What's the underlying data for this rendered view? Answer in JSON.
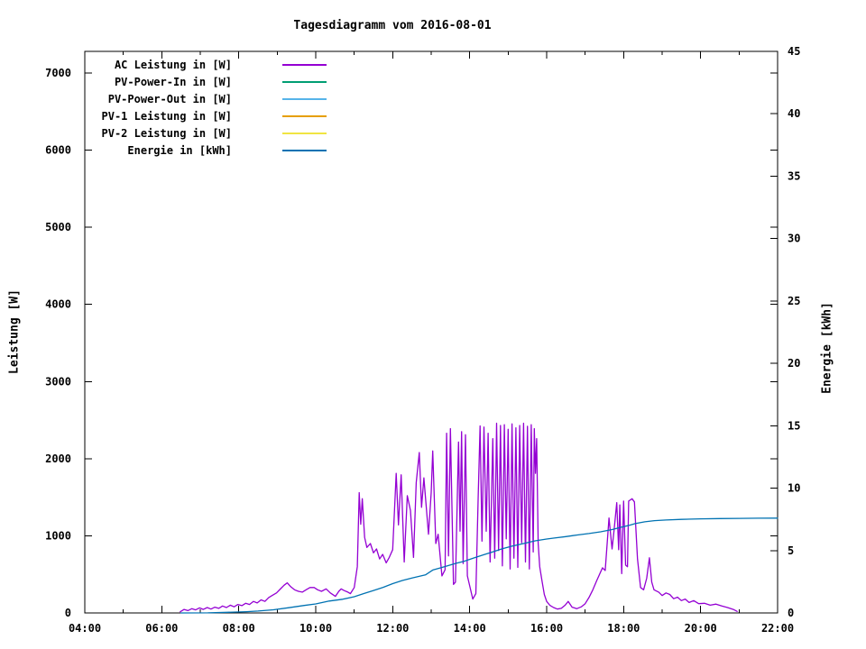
{
  "title": "Tagesdiagramm vom 2016-08-01",
  "axes": {
    "x": {
      "major_ticks": [
        {
          "h": 4,
          "label": "04:00"
        },
        {
          "h": 6,
          "label": "06:00"
        },
        {
          "h": 8,
          "label": "08:00"
        },
        {
          "h": 10,
          "label": "10:00"
        },
        {
          "h": 12,
          "label": "12:00"
        },
        {
          "h": 14,
          "label": "14:00"
        },
        {
          "h": 16,
          "label": "16:00"
        },
        {
          "h": 18,
          "label": "18:00"
        },
        {
          "h": 20,
          "label": "20:00"
        },
        {
          "h": 22,
          "label": "22:00"
        }
      ],
      "minor_hours": [
        5,
        7,
        9,
        11,
        13,
        15,
        17,
        19,
        21
      ]
    },
    "y_left": {
      "label": "Leistung [W]",
      "ticks": [
        0,
        1000,
        2000,
        3000,
        4000,
        5000,
        6000,
        7000
      ]
    },
    "y_right": {
      "label": "Energie [kWh]",
      "ticks": [
        0,
        5,
        10,
        15,
        20,
        25,
        30,
        35,
        40,
        45
      ]
    }
  },
  "chart_data": {
    "type": "line",
    "title": "Tagesdiagramm vom 2016-08-01",
    "x_unit": "hour-of-day",
    "x_range": [
      4,
      22
    ],
    "y_left_label": "Leistung [W]",
    "y_left_range": [
      0,
      7280
    ],
    "y_left_tick_max": 7000,
    "y_right_label": "Energie [kWh]",
    "y_right_range": [
      0,
      45
    ],
    "grid": false,
    "legend_position": "top-left-inside",
    "series": [
      {
        "name": "AC Leistung in [W]",
        "color": "#9400d3",
        "axis": "left",
        "points": [
          [
            6.48,
            15
          ],
          [
            6.58,
            45
          ],
          [
            6.68,
            30
          ],
          [
            6.78,
            55
          ],
          [
            6.88,
            40
          ],
          [
            6.98,
            65
          ],
          [
            7.08,
            45
          ],
          [
            7.18,
            70
          ],
          [
            7.28,
            50
          ],
          [
            7.38,
            75
          ],
          [
            7.48,
            60
          ],
          [
            7.58,
            90
          ],
          [
            7.68,
            70
          ],
          [
            7.78,
            100
          ],
          [
            7.88,
            80
          ],
          [
            7.98,
            110
          ],
          [
            8.08,
            95
          ],
          [
            8.18,
            125
          ],
          [
            8.28,
            110
          ],
          [
            8.38,
            150
          ],
          [
            8.48,
            130
          ],
          [
            8.58,
            170
          ],
          [
            8.68,
            150
          ],
          [
            8.78,
            200
          ],
          [
            8.88,
            230
          ],
          [
            8.98,
            260
          ],
          [
            9.08,
            310
          ],
          [
            9.18,
            360
          ],
          [
            9.26,
            390
          ],
          [
            9.35,
            340
          ],
          [
            9.45,
            300
          ],
          [
            9.55,
            280
          ],
          [
            9.65,
            270
          ],
          [
            9.75,
            300
          ],
          [
            9.85,
            330
          ],
          [
            9.96,
            330
          ],
          [
            10.05,
            300
          ],
          [
            10.15,
            280
          ],
          [
            10.27,
            312
          ],
          [
            10.38,
            260
          ],
          [
            10.51,
            215
          ],
          [
            10.6,
            280
          ],
          [
            10.66,
            312
          ],
          [
            10.74,
            290
          ],
          [
            10.82,
            273
          ],
          [
            10.9,
            250
          ],
          [
            11.0,
            330
          ],
          [
            11.08,
            600
          ],
          [
            11.13,
            1560
          ],
          [
            11.17,
            1150
          ],
          [
            11.21,
            1480
          ],
          [
            11.27,
            980
          ],
          [
            11.33,
            850
          ],
          [
            11.42,
            900
          ],
          [
            11.5,
            780
          ],
          [
            11.58,
            830
          ],
          [
            11.66,
            700
          ],
          [
            11.74,
            760
          ],
          [
            11.83,
            650
          ],
          [
            11.91,
            720
          ],
          [
            12.0,
            820
          ],
          [
            12.09,
            1810
          ],
          [
            12.15,
            1140
          ],
          [
            12.22,
            1790
          ],
          [
            12.3,
            660
          ],
          [
            12.38,
            1520
          ],
          [
            12.46,
            1330
          ],
          [
            12.54,
            720
          ],
          [
            12.61,
            1690
          ],
          [
            12.69,
            2080
          ],
          [
            12.75,
            1370
          ],
          [
            12.81,
            1750
          ],
          [
            12.93,
            1020
          ],
          [
            13.0,
            1560
          ],
          [
            13.04,
            2100
          ],
          [
            13.12,
            900
          ],
          [
            13.18,
            1020
          ],
          [
            13.28,
            480
          ],
          [
            13.36,
            560
          ],
          [
            13.4,
            2330
          ],
          [
            13.45,
            740
          ],
          [
            13.5,
            2390
          ],
          [
            13.58,
            370
          ],
          [
            13.63,
            400
          ],
          [
            13.71,
            2215
          ],
          [
            13.75,
            1060
          ],
          [
            13.79,
            2350
          ],
          [
            13.83,
            640
          ],
          [
            13.89,
            2310
          ],
          [
            13.94,
            480
          ],
          [
            14.0,
            350
          ],
          [
            14.08,
            180
          ],
          [
            14.16,
            250
          ],
          [
            14.22,
            1510
          ],
          [
            14.27,
            2425
          ],
          [
            14.32,
            930
          ],
          [
            14.37,
            2410
          ],
          [
            14.43,
            1060
          ],
          [
            14.48,
            2330
          ],
          [
            14.53,
            660
          ],
          [
            14.6,
            2260
          ],
          [
            14.65,
            710
          ],
          [
            14.7,
            2460
          ],
          [
            14.75,
            810
          ],
          [
            14.8,
            2430
          ],
          [
            14.85,
            610
          ],
          [
            14.9,
            2440
          ],
          [
            14.95,
            960
          ],
          [
            15.0,
            2380
          ],
          [
            15.05,
            570
          ],
          [
            15.1,
            2450
          ],
          [
            15.15,
            710
          ],
          [
            15.2,
            2400
          ],
          [
            15.25,
            590
          ],
          [
            15.3,
            2430
          ],
          [
            15.35,
            910
          ],
          [
            15.4,
            2460
          ],
          [
            15.45,
            660
          ],
          [
            15.5,
            2420
          ],
          [
            15.55,
            570
          ],
          [
            15.6,
            2440
          ],
          [
            15.65,
            790
          ],
          [
            15.68,
            2390
          ],
          [
            15.71,
            1810
          ],
          [
            15.74,
            2260
          ],
          [
            15.78,
            900
          ],
          [
            15.82,
            600
          ],
          [
            15.88,
            410
          ],
          [
            15.94,
            240
          ],
          [
            16.0,
            150
          ],
          [
            16.08,
            100
          ],
          [
            16.18,
            70
          ],
          [
            16.28,
            50
          ],
          [
            16.38,
            60
          ],
          [
            16.48,
            100
          ],
          [
            16.56,
            150
          ],
          [
            16.66,
            75
          ],
          [
            16.78,
            55
          ],
          [
            16.9,
            80
          ],
          [
            17.0,
            120
          ],
          [
            17.1,
            200
          ],
          [
            17.2,
            300
          ],
          [
            17.3,
            420
          ],
          [
            17.45,
            585
          ],
          [
            17.52,
            550
          ],
          [
            17.62,
            1230
          ],
          [
            17.7,
            830
          ],
          [
            17.75,
            1070
          ],
          [
            17.82,
            1430
          ],
          [
            17.87,
            820
          ],
          [
            17.9,
            1400
          ],
          [
            17.95,
            510
          ],
          [
            18.0,
            1450
          ],
          [
            18.05,
            620
          ],
          [
            18.1,
            600
          ],
          [
            18.13,
            1450
          ],
          [
            18.22,
            1480
          ],
          [
            18.28,
            1440
          ],
          [
            18.36,
            700
          ],
          [
            18.44,
            330
          ],
          [
            18.52,
            300
          ],
          [
            18.6,
            450
          ],
          [
            18.67,
            715
          ],
          [
            18.73,
            400
          ],
          [
            18.79,
            300
          ],
          [
            18.91,
            270
          ],
          [
            19.0,
            225
          ],
          [
            19.1,
            260
          ],
          [
            19.2,
            240
          ],
          [
            19.3,
            185
          ],
          [
            19.4,
            205
          ],
          [
            19.5,
            160
          ],
          [
            19.6,
            180
          ],
          [
            19.7,
            135
          ],
          [
            19.82,
            160
          ],
          [
            19.95,
            120
          ],
          [
            20.1,
            125
          ],
          [
            20.25,
            100
          ],
          [
            20.4,
            115
          ],
          [
            20.55,
            90
          ],
          [
            20.7,
            70
          ],
          [
            20.85,
            45
          ],
          [
            20.95,
            20
          ]
        ]
      },
      {
        "name": "PV-Power-In in [W]",
        "color": "#009e73",
        "axis": "left",
        "points": []
      },
      {
        "name": "PV-Power-Out in [W]",
        "color": "#56b4e9",
        "axis": "left",
        "points": []
      },
      {
        "name": "PV-1 Leistung in [W]",
        "color": "#e69f00",
        "axis": "left",
        "points": []
      },
      {
        "name": "PV-2 Leistung in [W]",
        "color": "#f0e442",
        "axis": "left",
        "points": []
      },
      {
        "name": "Energie in [kWh]",
        "color": "#0072b2",
        "axis": "right",
        "points": [
          [
            6.5,
            0
          ],
          [
            7.2,
            0.01
          ],
          [
            7.7,
            0.05
          ],
          [
            8.2,
            0.1
          ],
          [
            8.5,
            0.15
          ],
          [
            8.9,
            0.25
          ],
          [
            9.3,
            0.42
          ],
          [
            9.7,
            0.6
          ],
          [
            10.0,
            0.72
          ],
          [
            10.35,
            0.95
          ],
          [
            10.7,
            1.1
          ],
          [
            11.0,
            1.3
          ],
          [
            11.25,
            1.55
          ],
          [
            11.5,
            1.8
          ],
          [
            11.75,
            2.05
          ],
          [
            12.0,
            2.35
          ],
          [
            12.25,
            2.6
          ],
          [
            12.5,
            2.8
          ],
          [
            12.7,
            2.95
          ],
          [
            12.85,
            3.05
          ],
          [
            13.05,
            3.45
          ],
          [
            13.25,
            3.62
          ],
          [
            13.45,
            3.8
          ],
          [
            13.65,
            3.98
          ],
          [
            13.85,
            4.14
          ],
          [
            14.1,
            4.4
          ],
          [
            14.35,
            4.65
          ],
          [
            14.6,
            4.9
          ],
          [
            14.85,
            5.15
          ],
          [
            15.1,
            5.35
          ],
          [
            15.4,
            5.56
          ],
          [
            15.7,
            5.78
          ],
          [
            16.0,
            5.92
          ],
          [
            16.2,
            6.0
          ],
          [
            16.5,
            6.12
          ],
          [
            16.8,
            6.25
          ],
          [
            17.1,
            6.36
          ],
          [
            17.4,
            6.5
          ],
          [
            17.7,
            6.68
          ],
          [
            17.95,
            6.88
          ],
          [
            18.15,
            7.02
          ],
          [
            18.3,
            7.16
          ],
          [
            18.55,
            7.3
          ],
          [
            18.8,
            7.4
          ],
          [
            19.1,
            7.45
          ],
          [
            19.5,
            7.5
          ],
          [
            20.0,
            7.54
          ],
          [
            20.5,
            7.56
          ],
          [
            21.0,
            7.58
          ],
          [
            21.5,
            7.59
          ],
          [
            22.0,
            7.6
          ]
        ]
      }
    ]
  }
}
